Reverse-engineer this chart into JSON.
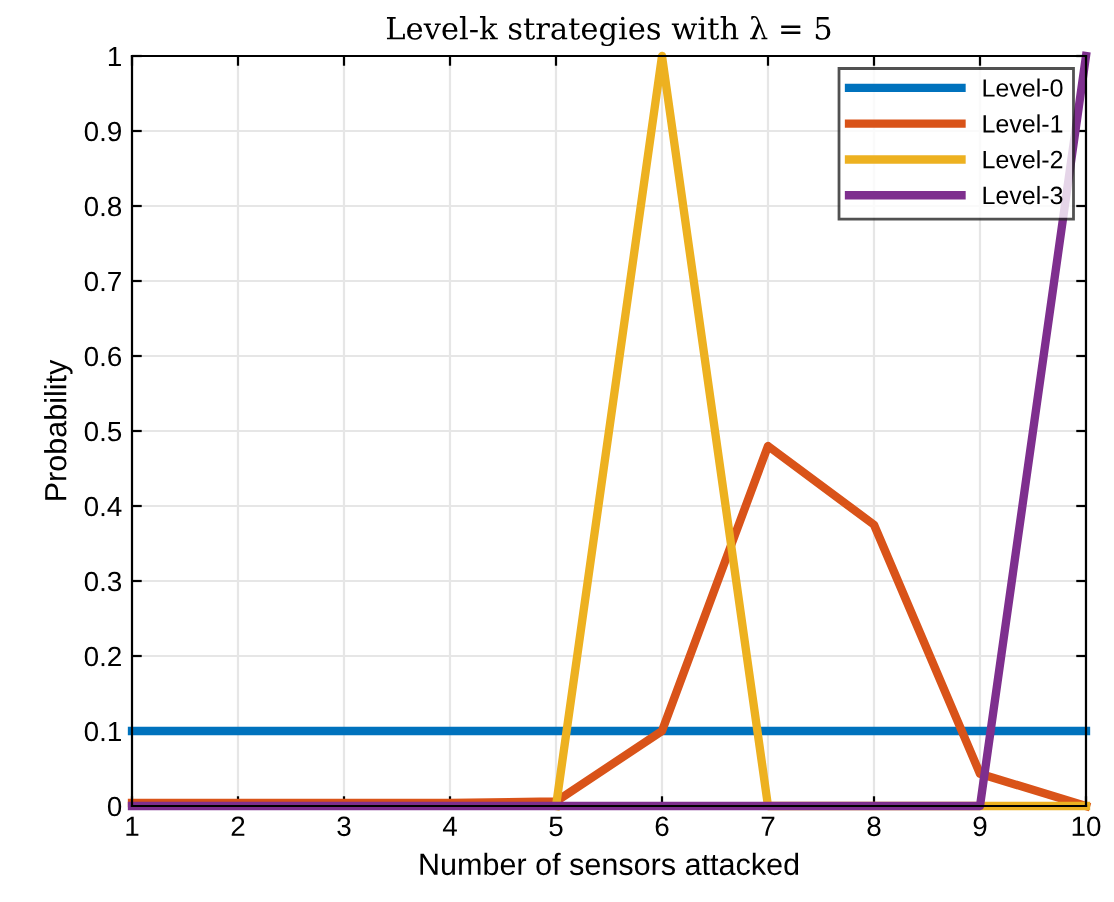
{
  "chart_data": {
    "type": "line",
    "title": "Level-k strategies with λ = 5",
    "xlabel": "Number of sensors attacked",
    "ylabel": "Probability",
    "x": [
      1,
      2,
      3,
      4,
      5,
      6,
      7,
      8,
      9,
      10
    ],
    "series": [
      {
        "name": "Level-0",
        "color": "#0072bd",
        "values": [
          0.1,
          0.1,
          0.1,
          0.1,
          0.1,
          0.1,
          0.1,
          0.1,
          0.1,
          0.1
        ]
      },
      {
        "name": "Level-1",
        "color": "#d95319",
        "values": [
          0.004,
          0.004,
          0.004,
          0.004,
          0.006,
          0.1,
          0.48,
          0.375,
          0.043,
          0
        ]
      },
      {
        "name": "Level-2",
        "color": "#edb120",
        "values": [
          null,
          null,
          null,
          null,
          0,
          1,
          0,
          0,
          0,
          0
        ]
      },
      {
        "name": "Level-3",
        "color": "#7e2f8e",
        "values": [
          0,
          0,
          0,
          0,
          0,
          0,
          0,
          0,
          0,
          1
        ]
      }
    ],
    "xlim": [
      1,
      10
    ],
    "xticks": [
      1,
      2,
      3,
      4,
      5,
      6,
      7,
      8,
      9,
      10
    ],
    "ylim": [
      0,
      1
    ],
    "yticks": [
      0,
      0.1,
      0.2,
      0.3,
      0.4,
      0.5,
      0.6,
      0.7,
      0.8,
      0.9,
      1
    ],
    "grid": true,
    "legend": "top right",
    "marker": "none",
    "line_style": "solid"
  }
}
